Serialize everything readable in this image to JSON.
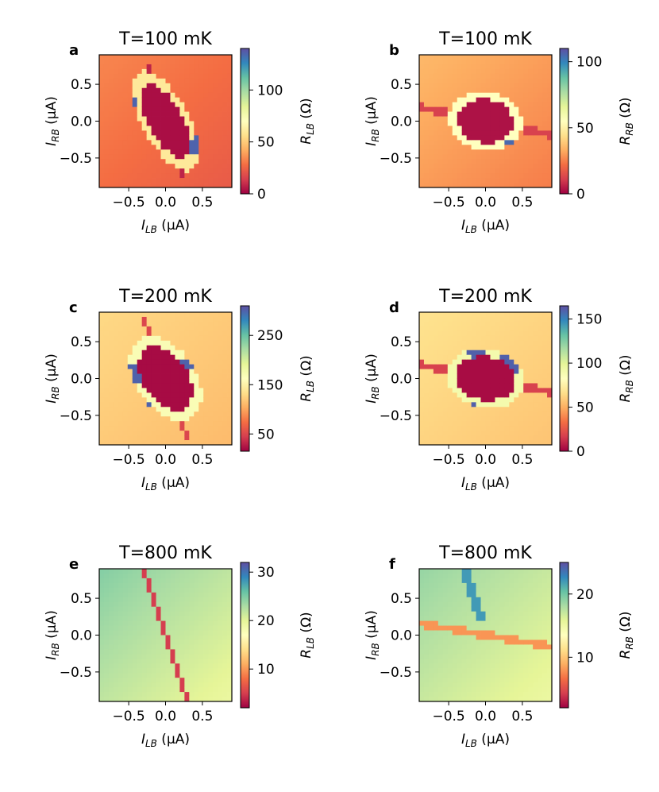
{
  "chart_data": [
    {
      "type": "heatmap",
      "panel_label": "a",
      "title": "T=100 mK",
      "col": 0,
      "row": 0,
      "xlabel_main": "I",
      "xlabel_sub": "LB",
      "xlabel_unit": " (μA)",
      "ylabel_main": "I",
      "ylabel_sub": "RB",
      "ylabel_unit": " (μA)",
      "xlim": [
        -0.9,
        0.9
      ],
      "ylim": [
        -0.9,
        0.9
      ],
      "xticks": [
        {
          "v": -0.5,
          "label": "−0.5"
        },
        {
          "v": 0.0,
          "label": "0.0"
        },
        {
          "v": 0.5,
          "label": "0.5"
        }
      ],
      "yticks": [
        {
          "v": 0.5,
          "label": "0.5"
        },
        {
          "v": 0.0,
          "label": "0.0"
        },
        {
          "v": -0.5,
          "label": "−0.5"
        }
      ],
      "colorbar": {
        "label_main": "R",
        "label_sub": "LB",
        "label_unit": " (Ω)",
        "min": 0,
        "max": 140,
        "ticks": [
          0,
          50,
          100
        ]
      },
      "features": {
        "background": 28,
        "bg_grad": 6,
        "lobe_angle": -62,
        "lobe_a": 0.56,
        "lobe_b": 0.23,
        "lobe_val": 3,
        "ring_val": 60,
        "ring_width": 0.08,
        "blue_val": 135,
        "blue_points": [
          [
            -0.5,
            0.2
          ],
          [
            -0.52,
            0.0
          ],
          [
            0.5,
            0.0
          ],
          [
            0.45,
            -0.35
          ],
          [
            0.48,
            0.25
          ]
        ],
        "stripe_angle": -72,
        "stripe_val": 8,
        "stripe_width": 0.025,
        "stripe_len": 0.9,
        "stripe_dark": 0
      }
    },
    {
      "type": "heatmap",
      "panel_label": "b",
      "title": "T=100 mK",
      "col": 1,
      "row": 0,
      "xlabel_main": "I",
      "xlabel_sub": "LB",
      "xlabel_unit": " (μA)",
      "ylabel_main": "I",
      "ylabel_sub": "RB",
      "ylabel_unit": " (μA)",
      "xlim": [
        -0.9,
        0.9
      ],
      "ylim": [
        -0.9,
        0.9
      ],
      "xticks": [
        {
          "v": -0.5,
          "label": "−0.5"
        },
        {
          "v": 0.0,
          "label": "0.0"
        },
        {
          "v": 0.5,
          "label": "0.5"
        }
      ],
      "yticks": [
        {
          "v": 0.5,
          "label": "0.5"
        },
        {
          "v": 0.0,
          "label": "0.0"
        },
        {
          "v": -0.5,
          "label": "−0.5"
        }
      ],
      "colorbar": {
        "label_main": "R",
        "label_sub": "RB",
        "label_unit": " (Ω)",
        "min": 0,
        "max": 110,
        "ticks": [
          0,
          50,
          100
        ]
      },
      "features": {
        "background": 30,
        "bg_grad": 6,
        "lobe_angle": -10,
        "lobe_a": 0.38,
        "lobe_b": 0.3,
        "lobe_val": 3,
        "ring_val": 55,
        "ring_width": 0.1,
        "blue_val": 105,
        "blue_points": [
          [
            -0.1,
            0.5
          ],
          [
            0.1,
            -0.6
          ],
          [
            0.35,
            -0.4
          ]
        ],
        "stripe_angle": -12,
        "stripe_val": 12,
        "stripe_width": 0.05,
        "stripe_len": 0.9,
        "stripe_dark": 1
      }
    },
    {
      "type": "heatmap",
      "panel_label": "c",
      "title": "T=200 mK",
      "col": 0,
      "row": 1,
      "xlabel_main": "I",
      "xlabel_sub": "LB",
      "xlabel_unit": " (μA)",
      "ylabel_main": "I",
      "ylabel_sub": "RB",
      "ylabel_unit": " (μA)",
      "xlim": [
        -0.9,
        0.9
      ],
      "ylim": [
        -0.9,
        0.9
      ],
      "xticks": [
        {
          "v": -0.5,
          "label": "−0.5"
        },
        {
          "v": 0.0,
          "label": "0.0"
        },
        {
          "v": 0.5,
          "label": "0.5"
        }
      ],
      "yticks": [
        {
          "v": 0.5,
          "label": "0.5"
        },
        {
          "v": 0.0,
          "label": "0.0"
        },
        {
          "v": -0.5,
          "label": "−0.5"
        }
      ],
      "colorbar": {
        "label_main": "R",
        "label_sub": "LB",
        "label_unit": " (Ω)",
        "min": 15,
        "max": 310,
        "ticks": [
          50,
          150,
          250
        ]
      },
      "features": {
        "background": 120,
        "bg_grad": 10,
        "lobe_angle": -55,
        "lobe_a": 0.48,
        "lobe_b": 0.3,
        "lobe_val": 20,
        "ring_val": 170,
        "ring_width": 0.1,
        "blue_val": 300,
        "blue_points": [
          [
            -0.42,
            0.05
          ],
          [
            -0.3,
            -0.4
          ],
          [
            0.35,
            0.25
          ],
          [
            0.4,
            0.3
          ]
        ],
        "stripe_angle": -70,
        "stripe_val": 50,
        "stripe_width": 0.025,
        "stripe_len": 0.9,
        "stripe_dark": 0
      }
    },
    {
      "type": "heatmap",
      "panel_label": "d",
      "title": "T=200 mK",
      "col": 1,
      "row": 1,
      "xlabel_main": "I",
      "xlabel_sub": "LB",
      "xlabel_unit": " (μA)",
      "ylabel_main": "I",
      "ylabel_sub": "RB",
      "ylabel_unit": " (μA)",
      "xlim": [
        -0.9,
        0.9
      ],
      "ylim": [
        -0.9,
        0.9
      ],
      "xticks": [
        {
          "v": -0.5,
          "label": "−0.5"
        },
        {
          "v": 0.0,
          "label": "0.0"
        },
        {
          "v": 0.5,
          "label": "0.5"
        }
      ],
      "yticks": [
        {
          "v": 0.5,
          "label": "0.5"
        },
        {
          "v": 0.0,
          "label": "0.0"
        },
        {
          "v": -0.5,
          "label": "−0.5"
        }
      ],
      "colorbar": {
        "label_main": "R",
        "label_sub": "RB",
        "label_unit": " (Ω)",
        "min": 0,
        "max": 165,
        "ticks": [
          0,
          50,
          100,
          150
        ]
      },
      "features": {
        "background": 62,
        "bg_grad": 6,
        "lobe_angle": -10,
        "lobe_a": 0.4,
        "lobe_b": 0.3,
        "lobe_val": 3,
        "ring_val": 90,
        "ring_width": 0.1,
        "blue_val": 160,
        "blue_points": [
          [
            0.3,
            0.35
          ],
          [
            0.4,
            0.2
          ],
          [
            -0.2,
            -0.45
          ],
          [
            0.0,
            -0.55
          ],
          [
            -0.1,
            0.38
          ]
        ],
        "stripe_angle": -12,
        "stripe_val": 18,
        "stripe_width": 0.05,
        "stripe_len": 0.9,
        "stripe_dark": 1
      }
    },
    {
      "type": "heatmap",
      "panel_label": "e",
      "title": "T=800 mK",
      "col": 0,
      "row": 2,
      "xlabel_main": "I",
      "xlabel_sub": "LB",
      "xlabel_unit": " (μA)",
      "ylabel_main": "I",
      "ylabel_sub": "RB",
      "ylabel_unit": " (μA)",
      "xlim": [
        -0.9,
        0.9
      ],
      "ylim": [
        -0.9,
        0.9
      ],
      "xticks": [
        {
          "v": -0.5,
          "label": "−0.5"
        },
        {
          "v": 0.0,
          "label": "0.0"
        },
        {
          "v": 0.5,
          "label": "0.5"
        }
      ],
      "yticks": [
        {
          "v": 0.5,
          "label": "0.5"
        },
        {
          "v": 0.0,
          "label": "0.0"
        },
        {
          "v": -0.5,
          "label": "−0.5"
        }
      ],
      "colorbar": {
        "label_main": "R",
        "label_sub": "LB",
        "label_unit": " (Ω)",
        "min": 2,
        "max": 32,
        "ticks": [
          10,
          20,
          30
        ]
      },
      "features": {
        "background": 22,
        "bg_grad": 3,
        "lobe_angle": 0,
        "lobe_a": 0,
        "lobe_b": 0,
        "lobe_val": 0,
        "ring_val": 0,
        "ring_width": 0,
        "blue_val": 0,
        "blue_points": [],
        "stripe_angle": -72,
        "stripe_val": 5,
        "stripe_width": 0.03,
        "stripe_len": 0.95,
        "stripe_dark": 1
      }
    },
    {
      "type": "heatmap",
      "panel_label": "f",
      "title": "T=800 mK",
      "col": 1,
      "row": 2,
      "xlabel_main": "I",
      "xlabel_sub": "LB",
      "xlabel_unit": " (μA)",
      "ylabel_main": "I",
      "ylabel_sub": "RB",
      "ylabel_unit": " (μA)",
      "xlim": [
        -0.9,
        0.9
      ],
      "ylim": [
        -0.9,
        0.9
      ],
      "xticks": [
        {
          "v": -0.5,
          "label": "−0.5"
        },
        {
          "v": 0.0,
          "label": "0.0"
        },
        {
          "v": 0.5,
          "label": "0.5"
        }
      ],
      "yticks": [
        {
          "v": 0.5,
          "label": "0.5"
        },
        {
          "v": 0.0,
          "label": "0.0"
        },
        {
          "v": -0.5,
          "label": "−0.5"
        }
      ],
      "colorbar": {
        "label_main": "R",
        "label_sub": "RB",
        "label_unit": " (Ω)",
        "min": 2,
        "max": 25,
        "ticks": [
          10,
          20
        ]
      },
      "features": {
        "background": 17,
        "bg_grad": 2,
        "lobe_angle": 0,
        "lobe_a": 0,
        "lobe_b": 0,
        "lobe_val": 0,
        "ring_val": 0,
        "ring_width": 0,
        "blue_val": 0,
        "blue_points": [],
        "stripe_angle": -10,
        "stripe_val": 8,
        "stripe_width": 0.05,
        "stripe_len": 0.95,
        "stripe_dark": 1,
        "light_stripe_angle": -65,
        "light_stripe_val": 22,
        "light_stripe_from": [
          -0.3,
          0.9
        ],
        "light_stripe_to": [
          -0.05,
          0.2
        ]
      }
    }
  ]
}
